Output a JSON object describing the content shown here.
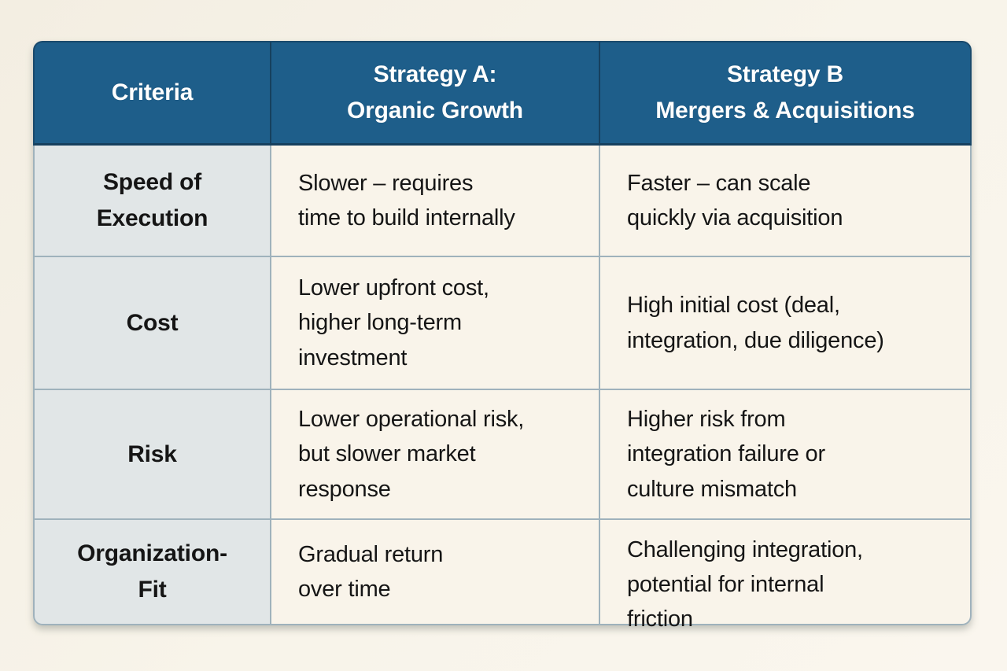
{
  "title": "Strategy comparison table",
  "colors": {
    "header_bg": "#1e5e8a",
    "header_border": "#16405e",
    "header_text": "#ffffff",
    "label_col_bg": "#e1e6e7",
    "body_bg": "#f9f4ea",
    "grid_border": "#9fb2bc",
    "page_bg": "#f6f1e7",
    "text": "#151515"
  },
  "table": {
    "header": [
      "Criteria",
      "Strategy A:\nOrganic Growth",
      "Strategy B\nMergers & Acquisitions"
    ],
    "rows": [
      [
        "Speed of\nExecution",
        "Slower – requires\ntime to build internally",
        "Faster – can scale\nquickly via acquisition"
      ],
      [
        "Cost",
        "Lower upfront cost,\nhigher long-term\ninvestment",
        "High initial cost (deal,\nintegration, due diligence)"
      ],
      [
        "Risk",
        "Lower operational risk,\nbut slower market\nresponse",
        "Higher risk from\nintegration failure or\nculture mismatch"
      ],
      [
        "Organization-\nFit",
        "Gradual return\nover time",
        "Challenging integration,\npotential for internal\nfriction"
      ]
    ]
  },
  "chart_data": {
    "type": "table",
    "title": "Strategy A vs Strategy B comparison",
    "columns": [
      "Criteria",
      "Strategy A: Organic Growth",
      "Strategy B Mergers & Acquisitions"
    ],
    "rows": [
      [
        "Speed of Execution",
        "Slower – requires time to build internally",
        "Faster – can scale quickly via acquisition"
      ],
      [
        "Cost",
        "Lower upfront cost, higher long-term investment",
        "High initial cost (deal, integration, due diligence)"
      ],
      [
        "Risk",
        "Lower operational risk, but slower market response",
        "Higher risk from integration failure or culture mismatch"
      ],
      [
        "Organization-Fit",
        "Gradual return over time",
        "Challenging integration, potential for internal friction"
      ]
    ]
  }
}
